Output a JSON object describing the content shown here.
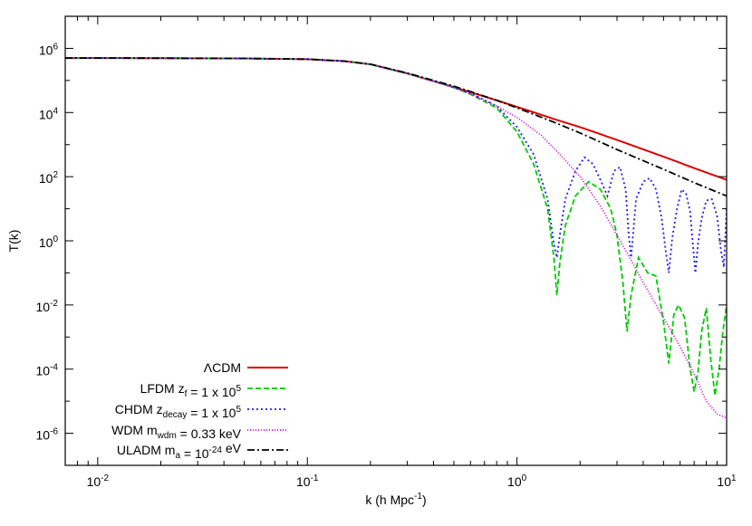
{
  "chart_data": {
    "type": "line",
    "title": "",
    "xlabel": {
      "main": "k (h Mpc",
      "sup": "-1",
      "end": ")"
    },
    "ylabel": "T(k)",
    "xscale": "log",
    "yscale": "log",
    "xlim": [
      0.007,
      10
    ],
    "ylim": [
      1e-07,
      10000000.0
    ],
    "grid": false,
    "legend_position": "bottom-left",
    "x_ticks": [
      {
        "value": 0.01,
        "base": "10",
        "exp": "-2"
      },
      {
        "value": 0.1,
        "base": "10",
        "exp": "-1"
      },
      {
        "value": 1,
        "base": "10",
        "exp": "0"
      },
      {
        "value": 10,
        "base": "10",
        "exp": "1"
      }
    ],
    "y_ticks": [
      {
        "value": 1e-06,
        "base": "10",
        "exp": "-6"
      },
      {
        "value": 0.0001,
        "base": "10",
        "exp": "-4"
      },
      {
        "value": 0.01,
        "base": "10",
        "exp": "-2"
      },
      {
        "value": 1,
        "base": "10",
        "exp": "0"
      },
      {
        "value": 100,
        "base": "10",
        "exp": "2"
      },
      {
        "value": 10000.0,
        "base": "10",
        "exp": "4"
      },
      {
        "value": 1000000.0,
        "base": "10",
        "exp": "6"
      }
    ],
    "series": [
      {
        "name": "ΛCDM",
        "label_parts": [
          {
            "t": "ΛCDM"
          }
        ],
        "color": "#e00000",
        "dash": "",
        "x": [
          0.007,
          0.01,
          0.02,
          0.05,
          0.1,
          0.15,
          0.2,
          0.3,
          0.4,
          0.5,
          0.6,
          0.8,
          1.0,
          1.5,
          2.0,
          3.0,
          5.0,
          7.0,
          10.0
        ],
        "y": [
          500000,
          500000,
          495000,
          485000,
          460000,
          400000,
          320000,
          165000,
          95000,
          62000,
          43000,
          24000,
          15000,
          6300,
          3500,
          1400,
          420,
          185,
          80
        ]
      },
      {
        "name": "LFDM",
        "label_parts": [
          {
            "t": "LFDM z"
          },
          {
            "sub": "f"
          },
          {
            "t": " = 1 x 10"
          },
          {
            "sup": "5"
          }
        ],
        "color": "#00cc00",
        "dash": "6,3",
        "x": [
          0.007,
          0.01,
          0.02,
          0.05,
          0.1,
          0.15,
          0.2,
          0.3,
          0.4,
          0.5,
          0.6,
          0.8,
          1.0,
          1.2,
          1.4,
          1.5,
          1.55,
          1.6,
          1.7,
          1.9,
          2.2,
          2.5,
          2.8,
          3.0,
          3.2,
          3.35,
          3.5,
          3.8,
          4.2,
          4.6,
          5.0,
          5.3,
          5.6,
          5.9,
          6.3,
          6.7,
          7.0,
          7.3,
          7.6,
          8.0,
          8.4,
          8.8,
          9.2,
          9.6,
          10.0
        ],
        "y": [
          500000,
          500000,
          495000,
          485000,
          460000,
          400000,
          320000,
          165000,
          95000,
          60000,
          37000,
          14000,
          2500,
          250,
          10,
          0.3,
          0.02,
          0.2,
          3,
          25,
          70,
          40,
          10,
          1.5,
          0.05,
          0.0015,
          0.02,
          0.3,
          0.1,
          0.08,
          0.003,
          0.00015,
          0.005,
          0.01,
          0.004,
          0.0001,
          2e-05,
          8e-05,
          0.0015,
          0.008,
          0.0002,
          1.5e-05,
          0.0001,
          0.0015,
          0.01
        ]
      },
      {
        "name": "CHDM",
        "label_parts": [
          {
            "t": "CHDM z"
          },
          {
            "sub": "decay"
          },
          {
            "t": " = 1 x 10"
          },
          {
            "sup": "5"
          }
        ],
        "color": "#1a1aff",
        "dash": "2,3",
        "x": [
          0.007,
          0.01,
          0.02,
          0.05,
          0.1,
          0.15,
          0.2,
          0.3,
          0.4,
          0.5,
          0.6,
          0.8,
          1.0,
          1.2,
          1.4,
          1.5,
          1.55,
          1.6,
          1.7,
          1.9,
          2.1,
          2.3,
          2.5,
          2.7,
          2.9,
          3.1,
          3.3,
          3.4,
          3.5,
          3.7,
          4.0,
          4.3,
          4.6,
          4.9,
          5.1,
          5.3,
          5.5,
          5.8,
          6.1,
          6.4,
          6.7,
          6.9,
          7.1,
          7.3,
          7.6,
          8.0,
          8.5,
          9.0,
          9.4,
          9.7,
          10.0
        ],
        "y": [
          500000,
          500000,
          495000,
          485000,
          460000,
          400000,
          320000,
          165000,
          95000,
          60000,
          40000,
          16000,
          3500,
          500,
          20,
          0.8,
          0.3,
          1.5,
          20,
          150,
          400,
          250,
          80,
          25,
          150,
          200,
          40,
          2,
          0.3,
          20,
          70,
          90,
          40,
          5,
          0.6,
          0.1,
          1.2,
          10,
          40,
          30,
          8,
          0.8,
          0.1,
          0.8,
          5,
          18,
          20,
          6,
          0.5,
          0.15,
          10
        ]
      },
      {
        "name": "WDM",
        "label_parts": [
          {
            "t": "WDM m"
          },
          {
            "sub": "wdm"
          },
          {
            "t": " = 0.33 keV"
          }
        ],
        "color": "#dd00dd",
        "dash": "1,2",
        "x": [
          0.007,
          0.01,
          0.02,
          0.05,
          0.1,
          0.15,
          0.2,
          0.3,
          0.4,
          0.5,
          0.6,
          0.8,
          1.0,
          1.3,
          1.6,
          2.0,
          2.5,
          3.0,
          3.5,
          4.0,
          5.0,
          6.0,
          7.0,
          8.0,
          9.0,
          10.0
        ],
        "y": [
          500000,
          500000,
          495000,
          485000,
          460000,
          400000,
          320000,
          165000,
          95000,
          60000,
          38000,
          16000,
          7000,
          2000,
          500,
          100,
          12,
          1.5,
          0.25,
          0.05,
          0.004,
          0.0005,
          7e-05,
          1e-05,
          4e-06,
          3e-06
        ]
      },
      {
        "name": "ULADM",
        "label_parts": [
          {
            "t": "ULADM m"
          },
          {
            "sub": "a"
          },
          {
            "t": " = 10"
          },
          {
            "sup": "-24"
          },
          {
            "t": " eV"
          }
        ],
        "color": "#000000",
        "dash": "8,3,2,3",
        "x": [
          0.007,
          0.01,
          0.02,
          0.05,
          0.1,
          0.15,
          0.2,
          0.3,
          0.4,
          0.5,
          0.6,
          0.8,
          1.0,
          1.5,
          2.0,
          3.0,
          5.0,
          7.0,
          10.0
        ],
        "y": [
          500000,
          500000,
          495000,
          485000,
          460000,
          400000,
          320000,
          170000,
          100000,
          66000,
          45000,
          24000,
          14000,
          5000,
          2300,
          700,
          170,
          65,
          25
        ]
      }
    ]
  }
}
